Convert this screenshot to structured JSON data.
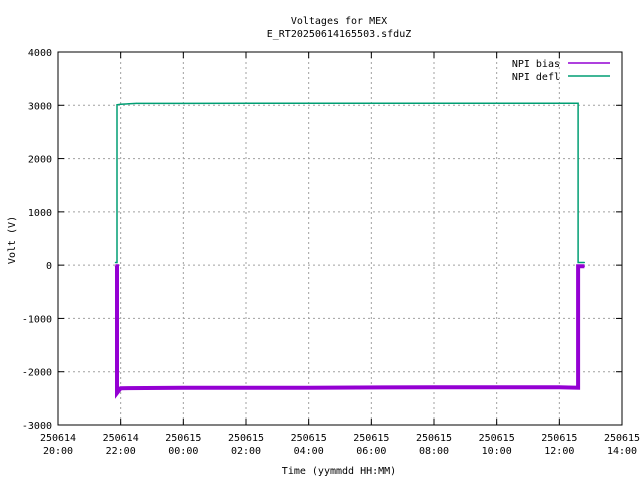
{
  "chart_data": {
    "type": "line",
    "title": "Voltages for MEX",
    "subtitle": "E_RT20250614165503.sfduZ",
    "xlabel": "Time (yymmdd HH:MM)",
    "ylabel": "Volt (V)",
    "xlim": [
      "2025-06-14 20:00",
      "2025-06-15 14:00"
    ],
    "ylim": [
      -3000,
      4000
    ],
    "yticks": [
      -3000,
      -2000,
      -1000,
      0,
      1000,
      2000,
      3000,
      4000
    ],
    "xticks": [
      {
        "date": "250614",
        "time": "20:00"
      },
      {
        "date": "250614",
        "time": "22:00"
      },
      {
        "date": "250615",
        "time": "00:00"
      },
      {
        "date": "250615",
        "time": "02:00"
      },
      {
        "date": "250615",
        "time": "04:00"
      },
      {
        "date": "250615",
        "time": "06:00"
      },
      {
        "date": "250615",
        "time": "08:00"
      },
      {
        "date": "250615",
        "time": "10:00"
      },
      {
        "date": "250615",
        "time": "12:00"
      },
      {
        "date": "250615",
        "time": "14:00"
      }
    ],
    "grid": true,
    "legend_position": "top-right",
    "series": [
      {
        "name": "NPI bias",
        "color": "#9400d3",
        "points": [
          [
            "2025-06-14 21:50",
            -20
          ],
          [
            "2025-06-14 21:53",
            -20
          ],
          [
            "2025-06-14 21:53",
            -2400
          ],
          [
            "2025-06-14 22:00",
            -2310
          ],
          [
            "2025-06-15 00:00",
            -2300
          ],
          [
            "2025-06-15 04:00",
            -2300
          ],
          [
            "2025-06-15 08:00",
            -2290
          ],
          [
            "2025-06-15 12:00",
            -2290
          ],
          [
            "2025-06-15 12:36",
            -2300
          ],
          [
            "2025-06-15 12:36",
            -20
          ],
          [
            "2025-06-15 12:48",
            -20
          ]
        ]
      },
      {
        "name": "NPI defl",
        "color": "#009e73",
        "points": [
          [
            "2025-06-14 21:50",
            50
          ],
          [
            "2025-06-14 21:53",
            50
          ],
          [
            "2025-06-14 21:53",
            3010
          ],
          [
            "2025-06-14 22:00",
            3020
          ],
          [
            "2025-06-14 22:30",
            3035
          ],
          [
            "2025-06-15 00:00",
            3035
          ],
          [
            "2025-06-15 04:00",
            3040
          ],
          [
            "2025-06-15 08:00",
            3040
          ],
          [
            "2025-06-15 12:00",
            3040
          ],
          [
            "2025-06-15 12:36",
            3040
          ],
          [
            "2025-06-15 12:36",
            50
          ],
          [
            "2025-06-15 12:48",
            50
          ]
        ]
      }
    ]
  }
}
